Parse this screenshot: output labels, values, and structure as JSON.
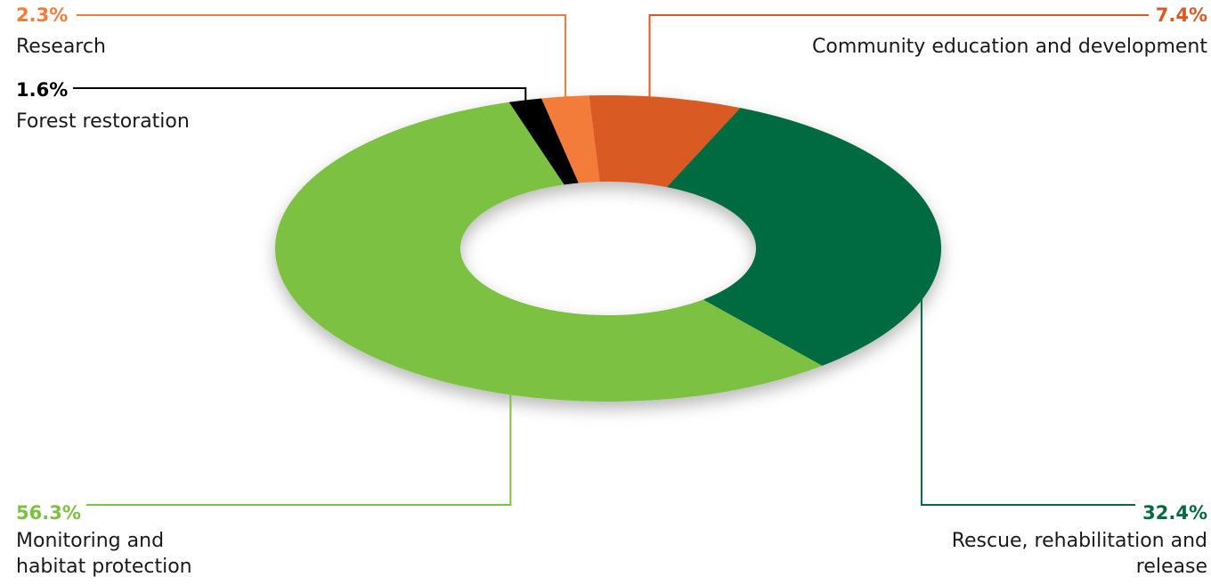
{
  "chart_data": {
    "type": "pie",
    "style": "donut",
    "unit": "%",
    "segments": [
      {
        "name": "Rescue, rehabilitation and release",
        "value": 32.4,
        "label": "32.4%",
        "color": "#006b3f"
      },
      {
        "name": "Monitoring and habitat protection",
        "value": 56.3,
        "label": "56.3%",
        "color": "#7cc142"
      },
      {
        "name": "Forest restoration",
        "value": 1.6,
        "label": "1.6%",
        "color": "#000000"
      },
      {
        "name": "Research",
        "value": 2.3,
        "label": "2.3%",
        "color": "#f47b3a"
      },
      {
        "name": "Community education and development",
        "value": 7.4,
        "label": "7.4%",
        "color": "#d95a24"
      }
    ]
  }
}
